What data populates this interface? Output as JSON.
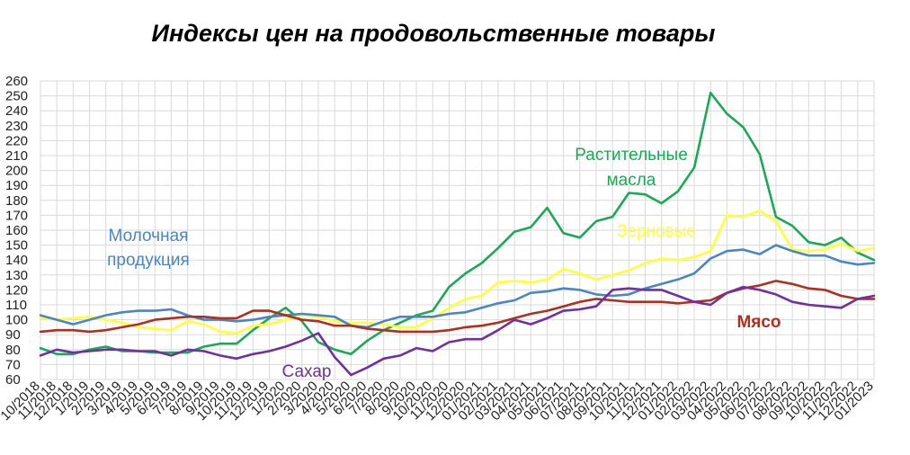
{
  "chart_data": {
    "type": "line",
    "title": "Индексы цен на продовольственные  товары",
    "xlabel": "",
    "ylabel": "",
    "ylim": [
      60,
      260
    ],
    "yticks": [
      60,
      70,
      80,
      90,
      100,
      110,
      120,
      130,
      140,
      150,
      160,
      170,
      180,
      190,
      200,
      210,
      220,
      230,
      240,
      250,
      260
    ],
    "grid": true,
    "legend": "inline labels",
    "categories": [
      "10/2018",
      "11/2018",
      "12/2018",
      "1/2019",
      "2/2019",
      "3/2019",
      "4/2019",
      "5/2019",
      "6/2019",
      "7/2019",
      "8/2019",
      "9/2019",
      "10/2019",
      "11/2019",
      "12/2019",
      "1/2020",
      "2/2020",
      "3/2020",
      "4/2020",
      "5/2020",
      "6/2020",
      "7/2020",
      "8/2020",
      "9/2020",
      "10/2020",
      "11/2020",
      "12/2020",
      "01/2021",
      "02/2021",
      "03/2021",
      "04/2021",
      "05/2021",
      "06/2021",
      "07/2021",
      "08/2021",
      "09/2021",
      "10/2021",
      "11/2021",
      "12/2021",
      "01/2022",
      "02/2022",
      "03/2022",
      "04/2022",
      "05/2022",
      "06/2022",
      "07/2022",
      "08/2022",
      "09/2022",
      "10/2022",
      "11/2022",
      "12/2022",
      "01/2023"
    ],
    "xtick_labels": [
      "10/2018",
      "11/2018",
      "12/2018",
      "1/2019",
      "2/2019",
      "3/2019",
      "4/2019",
      "5/2019",
      "6/2019",
      "7/2019",
      "8/2019",
      "9/2019",
      "10/2019",
      "11/2019",
      "12/2019",
      "1/2020",
      "2/2020",
      "3/2020",
      "4/2020",
      "5/2020",
      "6/2020",
      "7/2020",
      "8/2020",
      "9/2020",
      "10/2020",
      "11/2020",
      "12/2020",
      "01/2021",
      "02/2021",
      "03/2021",
      "04/2021",
      "05/2021",
      "06/2021",
      "07/2021",
      "08/2021",
      "09/2021",
      "10/2021",
      "11/2021",
      "12/2021",
      "01/2022",
      "02/2022",
      "03/2022",
      "04/2022",
      "05/2022",
      "06/2022",
      "07/2022",
      "08/2022",
      "09/2022",
      "10/2022",
      "11/2022",
      "12/2022",
      "01/2023"
    ],
    "series": [
      {
        "name": "Растительные масла",
        "label_lines": [
          "Растительные",
          "масла"
        ],
        "color": "#1aaa55",
        "values": [
          81,
          77,
          77,
          80,
          82,
          79,
          79,
          78,
          78,
          78,
          82,
          84,
          84,
          93,
          101,
          108,
          99,
          85,
          80,
          77,
          86,
          93,
          98,
          103,
          106,
          122,
          131,
          138,
          148,
          159,
          162,
          175,
          158,
          155,
          166,
          169,
          185,
          184,
          178,
          186,
          202,
          252,
          238,
          229,
          211,
          169,
          163,
          152,
          150,
          155,
          145,
          140
        ]
      },
      {
        "name": "Зерновые",
        "label_lines": [
          "Зерновые"
        ],
        "color": "#ffff33",
        "values": [
          101,
          100,
          101,
          102,
          100,
          98,
          95,
          94,
          93,
          99,
          97,
          92,
          91,
          96,
          97,
          100,
          103,
          102,
          99,
          98,
          98,
          97,
          95,
          95,
          101,
          108,
          114,
          116,
          125,
          126,
          125,
          127,
          134,
          131,
          127,
          130,
          133,
          138,
          141,
          140,
          142,
          146,
          170,
          169,
          173,
          166,
          147,
          146,
          147,
          151,
          146,
          148
        ]
      },
      {
        "name": "Молочная продукция",
        "label_lines": [
          "Молочная",
          "продукция"
        ],
        "color": "#4a86c5",
        "values": [
          103,
          100,
          97,
          100,
          103,
          105,
          106,
          106,
          107,
          103,
          100,
          100,
          99,
          100,
          102,
          103,
          104,
          103,
          102,
          96,
          95,
          99,
          102,
          102,
          102,
          104,
          105,
          108,
          111,
          113,
          118,
          119,
          121,
          120,
          117,
          116,
          117,
          121,
          124,
          127,
          131,
          141,
          146,
          147,
          144,
          150,
          146,
          143,
          143,
          139,
          137,
          138
        ]
      },
      {
        "name": "Мясо",
        "label_lines": [
          "Мясо"
        ],
        "color": "#b03020",
        "values": [
          92,
          93,
          93,
          92,
          93,
          95,
          97,
          100,
          101,
          102,
          102,
          101,
          101,
          106,
          106,
          103,
          100,
          99,
          96,
          96,
          94,
          93,
          92,
          92,
          92,
          93,
          95,
          96,
          98,
          101,
          104,
          106,
          109,
          112,
          114,
          113,
          112,
          112,
          112,
          111,
          112,
          113,
          118,
          121,
          123,
          126,
          124,
          121,
          120,
          116,
          114,
          114
        ]
      },
      {
        "name": "Сахар",
        "label_lines": [
          "Сахар"
        ],
        "color": "#7030a0",
        "values": [
          76,
          80,
          78,
          79,
          80,
          80,
          79,
          79,
          76,
          80,
          79,
          76,
          74,
          77,
          79,
          82,
          86,
          91,
          75,
          63,
          68,
          74,
          76,
          81,
          79,
          85,
          87,
          87,
          93,
          100,
          97,
          101,
          106,
          107,
          109,
          120,
          121,
          120,
          120,
          116,
          112,
          110,
          118,
          122,
          120,
          117,
          112,
          110,
          109,
          108,
          114,
          116
        ]
      }
    ]
  }
}
